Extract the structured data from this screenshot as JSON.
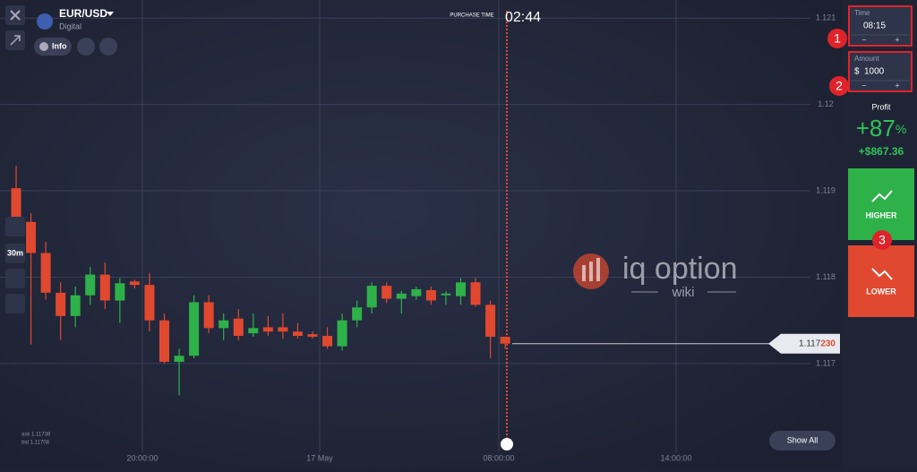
{
  "header": {
    "asset": "EUR/USD",
    "asset_kind": "Digital",
    "info": "Info",
    "purchase_label": "PURCHASE TIME",
    "purchase_time": "02:44"
  },
  "toolbar": {
    "timeframe": "30m"
  },
  "chart": {
    "type": "candlestick",
    "up_color": "#2fb14a",
    "down_color": "#e0492f",
    "ylim": [
      1.11592,
      1.12121
    ],
    "yticks": [
      1.121,
      1.12,
      1.119,
      1.118,
      1.117
    ],
    "xticks": [
      "20:00:00",
      "17 May",
      "08:00:00",
      "14:00:00"
    ],
    "candles": [
      {
        "open": 1.11903,
        "high": 1.11929,
        "low": 1.11856,
        "close": 1.11864
      },
      {
        "open": 1.11864,
        "high": 1.11874,
        "low": 1.11722,
        "close": 1.11828
      },
      {
        "open": 1.11828,
        "high": 1.11841,
        "low": 1.11774,
        "close": 1.11782
      },
      {
        "open": 1.11782,
        "high": 1.11794,
        "low": 1.11727,
        "close": 1.11755
      },
      {
        "open": 1.11755,
        "high": 1.11789,
        "low": 1.11742,
        "close": 1.11779
      },
      {
        "open": 1.11779,
        "high": 1.11812,
        "low": 1.11768,
        "close": 1.11803
      },
      {
        "open": 1.11803,
        "high": 1.11817,
        "low": 1.11763,
        "close": 1.11773
      },
      {
        "open": 1.11773,
        "high": 1.11799,
        "low": 1.11747,
        "close": 1.11793
      },
      {
        "open": 1.11795,
        "high": 1.11797,
        "low": 1.11787,
        "close": 1.11791
      },
      {
        "open": 1.11791,
        "high": 1.11805,
        "low": 1.11737,
        "close": 1.1175
      },
      {
        "open": 1.1175,
        "high": 1.11758,
        "low": 1.117,
        "close": 1.11702
      },
      {
        "open": 1.11702,
        "high": 1.11717,
        "low": 1.11663,
        "close": 1.11709
      },
      {
        "open": 1.11709,
        "high": 1.11779,
        "low": 1.11706,
        "close": 1.11771
      },
      {
        "open": 1.11771,
        "high": 1.11779,
        "low": 1.11735,
        "close": 1.11741
      },
      {
        "open": 1.11741,
        "high": 1.11758,
        "low": 1.11727,
        "close": 1.1175
      },
      {
        "open": 1.11752,
        "high": 1.11763,
        "low": 1.11727,
        "close": 1.11732
      },
      {
        "open": 1.11735,
        "high": 1.11758,
        "low": 1.11731,
        "close": 1.11741
      },
      {
        "open": 1.11742,
        "high": 1.11755,
        "low": 1.11732,
        "close": 1.11737
      },
      {
        "open": 1.11742,
        "high": 1.11758,
        "low": 1.11729,
        "close": 1.11737
      },
      {
        "open": 1.11737,
        "high": 1.11747,
        "low": 1.11729,
        "close": 1.11732
      },
      {
        "open": 1.11734,
        "high": 1.11737,
        "low": 1.11729,
        "close": 1.11731
      },
      {
        "open": 1.11732,
        "high": 1.11742,
        "low": 1.11717,
        "close": 1.1172
      },
      {
        "open": 1.1172,
        "high": 1.11758,
        "low": 1.11715,
        "close": 1.1175
      },
      {
        "open": 1.1175,
        "high": 1.11773,
        "low": 1.11742,
        "close": 1.11765
      },
      {
        "open": 1.11765,
        "high": 1.11794,
        "low": 1.11758,
        "close": 1.1179
      },
      {
        "open": 1.1179,
        "high": 1.11794,
        "low": 1.1177,
        "close": 1.11775
      },
      {
        "open": 1.11775,
        "high": 1.11784,
        "low": 1.11758,
        "close": 1.11781
      },
      {
        "open": 1.11778,
        "high": 1.11789,
        "low": 1.11774,
        "close": 1.11786
      },
      {
        "open": 1.11785,
        "high": 1.11789,
        "low": 1.11768,
        "close": 1.11773
      },
      {
        "open": 1.11779,
        "high": 1.11784,
        "low": 1.11768,
        "close": 1.11781
      },
      {
        "open": 1.11778,
        "high": 1.11799,
        "low": 1.11768,
        "close": 1.11794
      },
      {
        "open": 1.11794,
        "high": 1.11799,
        "low": 1.11766,
        "close": 1.11768
      },
      {
        "open": 1.11768,
        "high": 1.11773,
        "low": 1.11706,
        "close": 1.11731
      },
      {
        "open": 1.11731,
        "high": 1.11731,
        "low": 1.11717,
        "close": 1.11723
      }
    ],
    "price_main": "1.117",
    "price_tail": "230",
    "ask": "ask 1.11738",
    "bid": "bid 1.11708"
  },
  "watermark": {
    "brand": "iq option",
    "sub": "wiki"
  },
  "panel": {
    "time_label": "Time",
    "time_value": "08:15",
    "amount_label": "Amount",
    "currency": "$",
    "amount_value": "1000",
    "minus": "−",
    "plus": "+",
    "profit_label": "Profit",
    "profit_pct": "+87",
    "pct_sign": "%",
    "profit_amount": "+$867.36",
    "higher": "HIGHER",
    "lower": "LOWER"
  },
  "show_all": "Show All",
  "annotations": [
    "1",
    "2",
    "3"
  ]
}
